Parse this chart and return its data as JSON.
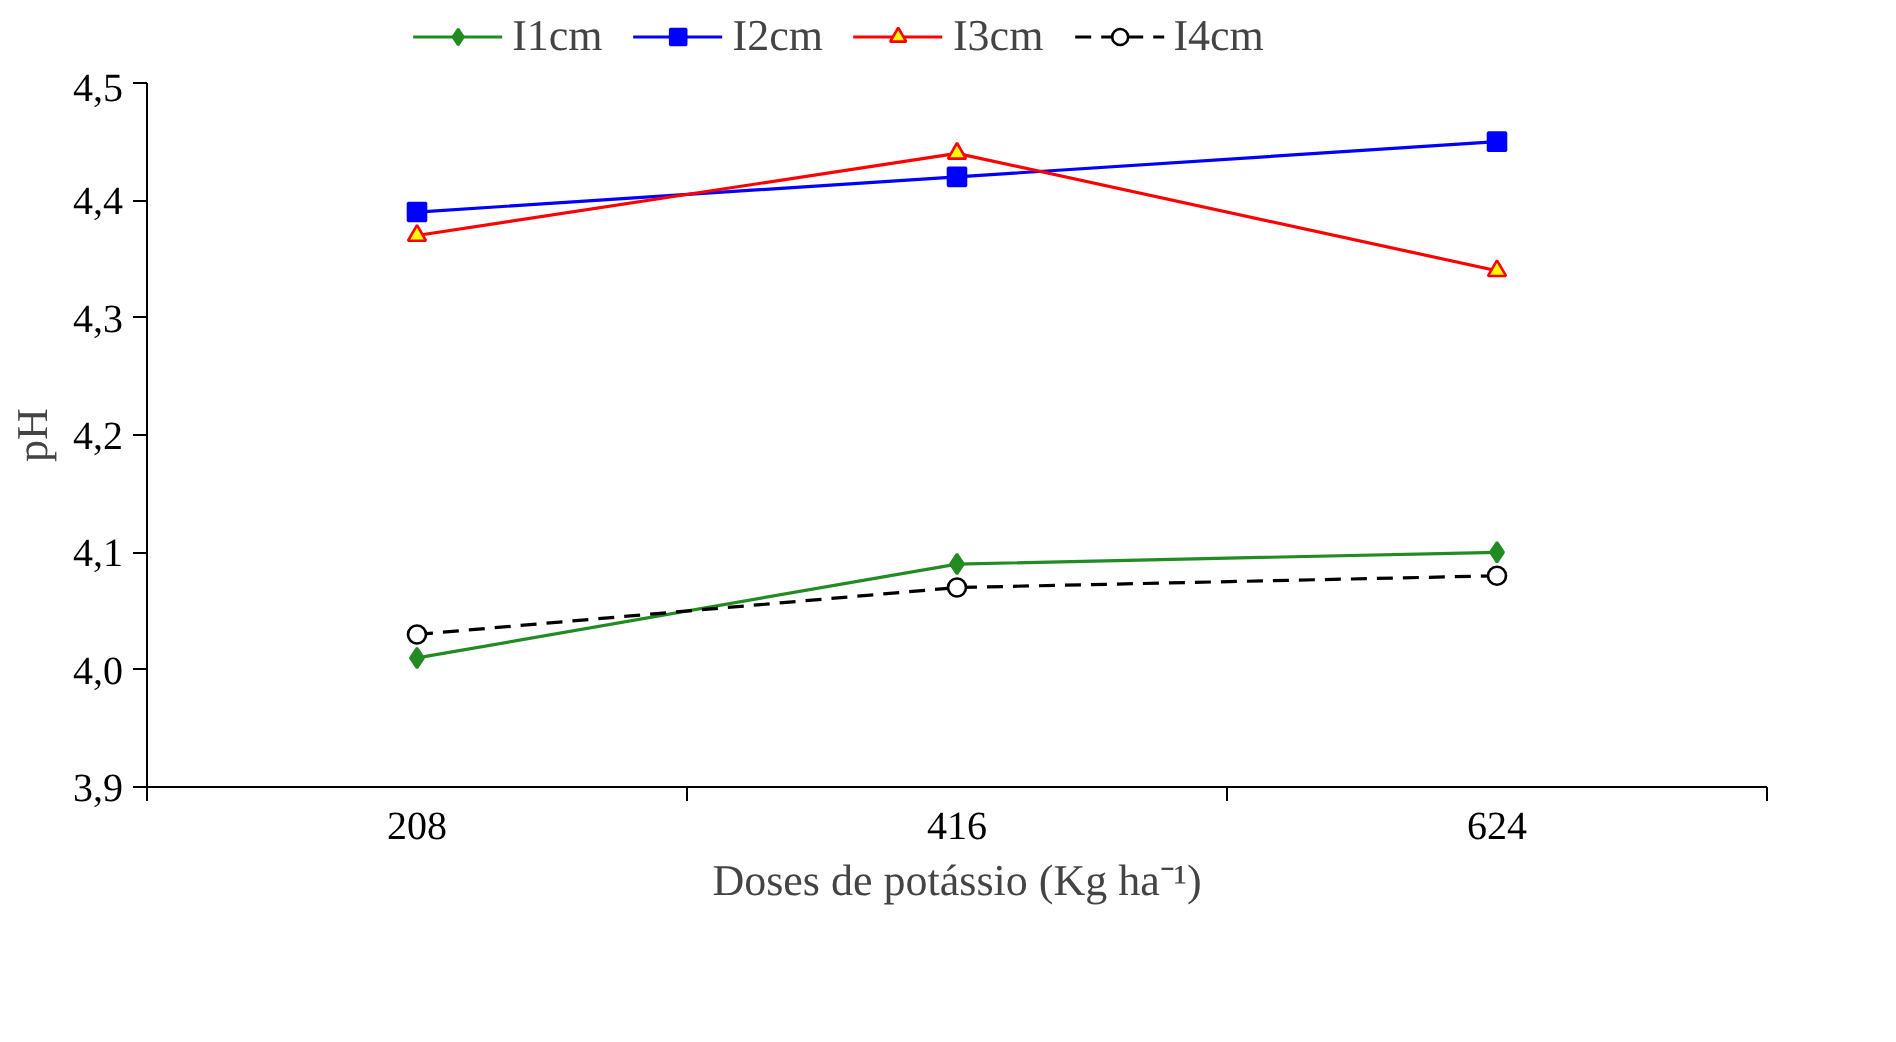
{
  "chart_data": {
    "type": "line",
    "xlabel": "Doses de potássio (Kg ha⁻¹)",
    "ylabel": "pH",
    "categories": [
      "208",
      "416",
      "624"
    ],
    "series": [
      {
        "name": "I1cm",
        "color": "#228b22",
        "values": [
          4.01,
          4.09,
          4.1
        ],
        "marker": "diamond",
        "line_style": "solid"
      },
      {
        "name": "I2cm",
        "color": "#0000ff",
        "values": [
          4.39,
          4.42,
          4.45
        ],
        "marker": "square",
        "line_style": "solid"
      },
      {
        "name": "I3cm",
        "color": "#ff0000",
        "values": [
          4.37,
          4.44,
          4.34
        ],
        "marker": "triangle",
        "line_style": "solid"
      },
      {
        "name": "I4cm",
        "color": "#000000",
        "values": [
          4.03,
          4.07,
          4.08
        ],
        "marker": "circle",
        "line_style": "dashed"
      }
    ],
    "ylim": [
      3.9,
      4.5
    ],
    "yticks": [
      {
        "value": 3.9,
        "label": "3,9"
      },
      {
        "value": 4.0,
        "label": "4,0"
      },
      {
        "value": 4.1,
        "label": "4,1"
      },
      {
        "value": 4.2,
        "label": "4,2"
      },
      {
        "value": 4.3,
        "label": "4,3"
      },
      {
        "value": 4.4,
        "label": "4,4"
      },
      {
        "value": 4.5,
        "label": "4,5"
      }
    ],
    "grid": false,
    "legend": "top"
  }
}
